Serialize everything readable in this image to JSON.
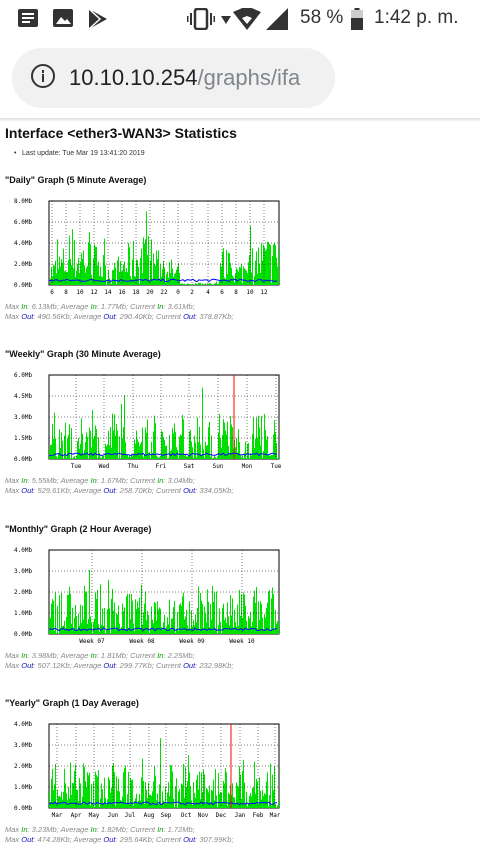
{
  "status_bar": {
    "battery": "58 %",
    "time": "1:42 p. m.",
    "icons": [
      "notes-icon",
      "image-icon",
      "play-store-icon",
      "vibrate-icon",
      "data-arrows-icon",
      "wifi-icon",
      "signal-icon",
      "battery-icon"
    ]
  },
  "browser": {
    "url_host": "10.10.10.254",
    "url_path": "/graphs/ifa"
  },
  "page": {
    "title": "Interface <ether3-WAN3> Statistics",
    "last_update": "Last update: Tue Mar 19 13:41:20 2019"
  },
  "legend": {
    "max_in": "Max",
    "in": "In",
    "average": "Average",
    "current": "Current",
    "out": "Out"
  },
  "graphs": [
    {
      "title": "\"Daily\" Graph (5 Minute Average)",
      "y_ticks": [
        "8.0Mb",
        "6.0Mb",
        "4.0Mb",
        "2.0Mb",
        "0.0Mb"
      ],
      "x_ticks": [
        "6",
        "8",
        "10",
        "12",
        "14",
        "16",
        "18",
        "20",
        "22",
        "0",
        "2",
        "4",
        "6",
        "8",
        "10",
        "12"
      ],
      "stats_in": {
        "max": "6.13Mb",
        "avg": "1.77Mb",
        "cur": "3.61Mb"
      },
      "stats_out": {
        "max": "490.56Kb",
        "avg": "290.40Kb",
        "cur": "378.87Kb"
      }
    },
    {
      "title": "\"Weekly\" Graph (30 Minute Average)",
      "y_ticks": [
        "6.0Mb",
        "4.5Mb",
        "3.0Mb",
        "1.5Mb",
        "0.0Mb"
      ],
      "x_ticks": [
        "Tue",
        "Wed",
        "Thu",
        "Fri",
        "Sat",
        "Sun",
        "Mon",
        "Tue"
      ],
      "stats_in": {
        "max": "5.55Mb",
        "avg": "1.67Mb",
        "cur": "3.04Mb"
      },
      "stats_out": {
        "max": "529.61Kb",
        "avg": "258.70Kb",
        "cur": "334.05Kb"
      }
    },
    {
      "title": "\"Monthly\" Graph (2 Hour Average)",
      "y_ticks": [
        "4.0Mb",
        "3.0Mb",
        "2.0Mb",
        "1.0Mb",
        "0.0Mb"
      ],
      "x_ticks": [
        "Week 07",
        "Week 08",
        "Week 09",
        "Week 10"
      ],
      "stats_in": {
        "max": "3.98Mb",
        "avg": "1.81Mb",
        "cur": "2.25Mb"
      },
      "stats_out": {
        "max": "507.12Kb",
        "avg": "299.77Kb",
        "cur": "232.98Kb"
      }
    },
    {
      "title": "\"Yearly\" Graph (1 Day Average)",
      "y_ticks": [
        "4.0Mb",
        "3.0Mb",
        "2.0Mb",
        "1.0Mb",
        "0.0Mb"
      ],
      "x_ticks": [
        "Mar",
        "Apr",
        "May",
        "Jun",
        "Jul",
        "Aug",
        "Sep",
        "Oct",
        "Nov",
        "Dec",
        "Jan",
        "Feb",
        "Mar"
      ],
      "stats_in": {
        "max": "3.23Mb",
        "avg": "1.82Mb",
        "cur": "1.72Mb"
      },
      "stats_out": {
        "max": "474.28Kb",
        "avg": "295.64Kb",
        "cur": "307.99Kb"
      }
    }
  ],
  "colors": {
    "in": "#00e000",
    "out": "#0000ff",
    "marker": "#ff0000",
    "grid": "#ff0000"
  }
}
